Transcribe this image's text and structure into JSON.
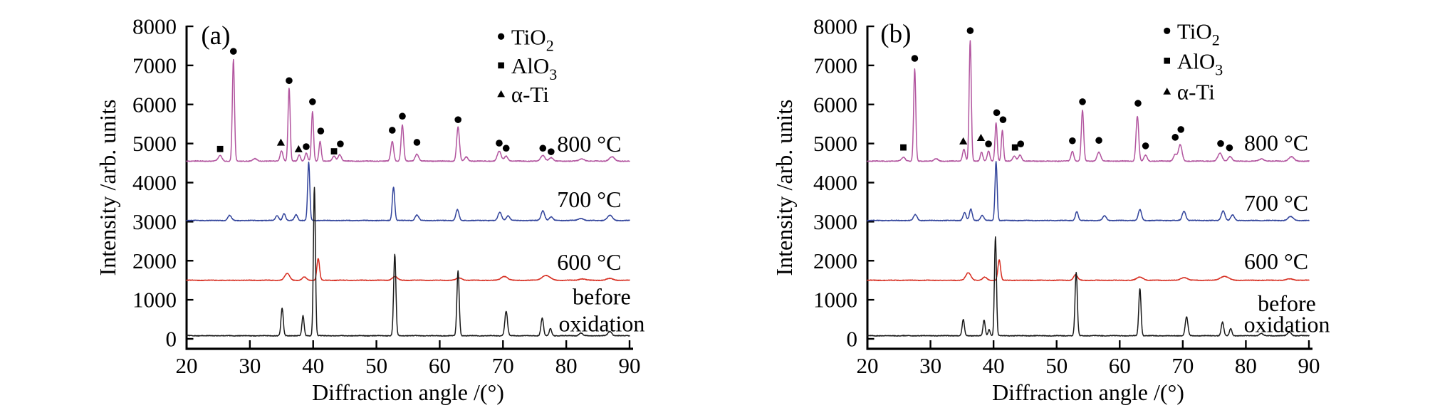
{
  "figure": {
    "background": "#ffffff",
    "description": "XRD patterns at different oxidation temperatures, two panels"
  },
  "chart_data": [
    {
      "type": "line",
      "panel_label": {
        "text": "(a)",
        "angle": 24.6,
        "value": 7780
      },
      "xlabel": "Diffraction angle /(°)",
      "ylabel": "Intensity /arb. units",
      "xlim": [
        20,
        90
      ],
      "ylim": [
        0,
        8000
      ],
      "x_ticks": [
        20,
        30,
        40,
        50,
        60,
        70,
        80,
        90
      ],
      "y_ticks": [
        0,
        1000,
        2000,
        3000,
        4000,
        5000,
        6000,
        7000,
        8000
      ],
      "legend_x": {
        "marker_angle": 69.7,
        "text_angle": 71.3
      },
      "legend": [
        {
          "symbol": "circle",
          "label": "TiO",
          "sub": "2",
          "value": 7740
        },
        {
          "symbol": "square",
          "label": "AlO",
          "sub": "3",
          "value": 7000
        },
        {
          "symbol": "triangle",
          "label": "α-Ti",
          "sub": "",
          "value": 6270
        }
      ],
      "series": [
        {
          "name": "800 °C",
          "color": "#b2559f",
          "baseline": 4550,
          "noise": 9,
          "peaks": [
            [
              25.3,
              140,
              0.3
            ],
            [
              27.4,
              2600,
              0.17
            ],
            [
              30.8,
              60,
              0.3
            ],
            [
              35.0,
              270,
              0.22
            ],
            [
              36.2,
              1870,
              0.17
            ],
            [
              37.8,
              160,
              0.2
            ],
            [
              38.9,
              210,
              0.2
            ],
            [
              39.9,
              1260,
              0.17
            ],
            [
              41.1,
              510,
              0.18
            ],
            [
              43.3,
              130,
              0.25
            ],
            [
              44.2,
              170,
              0.25
            ],
            [
              52.5,
              510,
              0.22
            ],
            [
              54.1,
              930,
              0.2
            ],
            [
              56.4,
              180,
              0.28
            ],
            [
              62.9,
              875,
              0.22
            ],
            [
              64.2,
              110,
              0.25
            ],
            [
              69.4,
              250,
              0.3
            ],
            [
              70.5,
              130,
              0.28
            ],
            [
              76.3,
              150,
              0.33
            ],
            [
              77.6,
              90,
              0.3
            ],
            [
              82.5,
              55,
              0.4
            ],
            [
              87.2,
              110,
              0.4
            ]
          ]
        },
        {
          "name": "700 °C",
          "color": "#31439b",
          "baseline": 3030,
          "noise": 8,
          "peaks": [
            [
              26.8,
              130,
              0.28
            ],
            [
              34.3,
              130,
              0.25
            ],
            [
              35.4,
              180,
              0.22
            ],
            [
              37.3,
              150,
              0.25
            ],
            [
              39.3,
              1490,
              0.17
            ],
            [
              52.7,
              860,
              0.19
            ],
            [
              56.4,
              140,
              0.28
            ],
            [
              62.8,
              280,
              0.24
            ],
            [
              69.5,
              210,
              0.28
            ],
            [
              70.8,
              120,
              0.28
            ],
            [
              76.3,
              250,
              0.28
            ],
            [
              77.6,
              90,
              0.28
            ],
            [
              82.3,
              55,
              0.4
            ],
            [
              86.9,
              130,
              0.4
            ]
          ]
        },
        {
          "name": "600 °C",
          "color": "#d62b1e",
          "baseline": 1500,
          "noise": 7,
          "peaks": [
            [
              35.9,
              175,
              0.38
            ],
            [
              38.6,
              85,
              0.32
            ],
            [
              40.8,
              560,
              0.21
            ],
            [
              52.9,
              95,
              0.4
            ],
            [
              63.1,
              60,
              0.45
            ],
            [
              70.2,
              100,
              0.5
            ],
            [
              76.8,
              120,
              0.65
            ],
            [
              82.5,
              35,
              0.5
            ],
            [
              86.9,
              45,
              0.5
            ]
          ]
        },
        {
          "name": "before oxidation",
          "color": "#1a1a1a",
          "baseline": 80,
          "noise": 8,
          "peaks": [
            [
              35.1,
              705,
              0.18
            ],
            [
              38.4,
              510,
              0.17
            ],
            [
              40.2,
              3800,
              0.16
            ],
            [
              52.9,
              2085,
              0.18
            ],
            [
              62.9,
              1670,
              0.18
            ],
            [
              70.5,
              630,
              0.21
            ],
            [
              76.2,
              450,
              0.2
            ],
            [
              77.5,
              180,
              0.19
            ],
            [
              82.3,
              70,
              0.28
            ],
            [
              86.9,
              110,
              0.3
            ]
          ]
        }
      ],
      "peak_markers": [
        {
          "symbol": "square",
          "angle": 25.3,
          "value": 4860
        },
        {
          "symbol": "circle",
          "angle": 27.4,
          "value": 7360
        },
        {
          "symbol": "triangle",
          "angle": 34.9,
          "value": 5030
        },
        {
          "symbol": "circle",
          "angle": 36.2,
          "value": 6610
        },
        {
          "symbol": "triangle",
          "angle": 37.7,
          "value": 4860
        },
        {
          "symbol": "circle",
          "angle": 38.9,
          "value": 4920
        },
        {
          "symbol": "circle",
          "angle": 39.9,
          "value": 6070
        },
        {
          "symbol": "circle",
          "angle": 41.2,
          "value": 5320
        },
        {
          "symbol": "square",
          "angle": 43.3,
          "value": 4800
        },
        {
          "symbol": "circle",
          "angle": 44.3,
          "value": 4990
        },
        {
          "symbol": "circle",
          "angle": 52.5,
          "value": 5340
        },
        {
          "symbol": "circle",
          "angle": 54.1,
          "value": 5700
        },
        {
          "symbol": "circle",
          "angle": 56.4,
          "value": 5030
        },
        {
          "symbol": "circle",
          "angle": 62.9,
          "value": 5610
        },
        {
          "symbol": "circle",
          "angle": 69.4,
          "value": 5010
        },
        {
          "symbol": "circle",
          "angle": 70.5,
          "value": 4880
        },
        {
          "symbol": "circle",
          "angle": 76.3,
          "value": 4880
        },
        {
          "symbol": "circle",
          "angle": 77.6,
          "value": 4790
        }
      ],
      "series_labels": [
        {
          "text": "800 °C",
          "angle": 88.7,
          "value": 4990,
          "anchor": "end"
        },
        {
          "text": "700 °C",
          "angle": 88.7,
          "value": 3570,
          "anchor": "end"
        },
        {
          "text": "600 °C",
          "angle": 88.7,
          "value": 1966,
          "anchor": "end"
        },
        {
          "text": "before",
          "angle": 85.6,
          "value": 1080,
          "anchor": "middle"
        },
        {
          "text": "oxidation",
          "angle": 85.6,
          "value": 390,
          "anchor": "middle"
        }
      ]
    },
    {
      "type": "line",
      "panel_label": {
        "text": "(b)",
        "angle": 24.5,
        "value": 7830
      },
      "xlabel": "Diffraction angle /(°)",
      "ylabel": "Intensity /arb. units",
      "xlim": [
        20,
        90
      ],
      "ylim": [
        0,
        8000
      ],
      "x_ticks": [
        20,
        30,
        40,
        50,
        60,
        70,
        80,
        90
      ],
      "y_ticks": [
        0,
        1000,
        2000,
        3000,
        4000,
        5000,
        6000,
        7000,
        8000
      ],
      "legend_x": {
        "marker_angle": 67.5,
        "text_angle": 69.1
      },
      "legend": [
        {
          "symbol": "circle",
          "label": "TiO",
          "sub": "2",
          "value": 7885
        },
        {
          "symbol": "square",
          "label": "AlO",
          "sub": "3",
          "value": 7120
        },
        {
          "symbol": "triangle",
          "label": "α-Ti",
          "sub": "",
          "value": 6335
        }
      ],
      "series": [
        {
          "name": "800 °C",
          "color": "#b2559f",
          "baseline": 4550,
          "noise": 9,
          "peaks": [
            [
              25.7,
              100,
              0.3
            ],
            [
              27.5,
              2350,
              0.17
            ],
            [
              30.9,
              60,
              0.3
            ],
            [
              35.3,
              300,
              0.22
            ],
            [
              36.3,
              3080,
              0.17
            ],
            [
              38.1,
              230,
              0.2
            ],
            [
              39.2,
              260,
              0.2
            ],
            [
              40.4,
              985,
              0.17
            ],
            [
              41.4,
              785,
              0.17
            ],
            [
              43.3,
              130,
              0.25
            ],
            [
              44.2,
              160,
              0.25
            ],
            [
              52.5,
              250,
              0.22
            ],
            [
              54.1,
              1295,
              0.19
            ],
            [
              56.7,
              230,
              0.28
            ],
            [
              62.8,
              1150,
              0.21
            ],
            [
              64.1,
              150,
              0.25
            ],
            [
              68.8,
              170,
              0.28
            ],
            [
              69.6,
              420,
              0.28
            ],
            [
              75.9,
              200,
              0.33
            ],
            [
              77.5,
              120,
              0.3
            ],
            [
              82.5,
              55,
              0.4
            ],
            [
              87.2,
              110,
              0.4
            ]
          ]
        },
        {
          "name": "700 °C",
          "color": "#31439b",
          "baseline": 3030,
          "noise": 8,
          "peaks": [
            [
              27.6,
              150,
              0.28
            ],
            [
              35.4,
              200,
              0.24
            ],
            [
              36.4,
              290,
              0.22
            ],
            [
              38.2,
              130,
              0.25
            ],
            [
              40.4,
              1505,
              0.17
            ],
            [
              53.2,
              230,
              0.22
            ],
            [
              57.6,
              120,
              0.28
            ],
            [
              63.2,
              280,
              0.25
            ],
            [
              70.2,
              240,
              0.28
            ],
            [
              76.4,
              250,
              0.28
            ],
            [
              77.9,
              140,
              0.28
            ],
            [
              87.1,
              100,
              0.4
            ]
          ]
        },
        {
          "name": "600 °C",
          "color": "#d62b1e",
          "baseline": 1500,
          "noise": 7,
          "peaks": [
            [
              36.0,
              190,
              0.4
            ],
            [
              38.6,
              80,
              0.32
            ],
            [
              40.9,
              520,
              0.21
            ],
            [
              53.0,
              140,
              0.32
            ],
            [
              63.2,
              80,
              0.5
            ],
            [
              70.2,
              70,
              0.5
            ],
            [
              76.6,
              100,
              0.65
            ],
            [
              87.0,
              35,
              0.5
            ]
          ]
        },
        {
          "name": "before oxidation",
          "color": "#1a1a1a",
          "baseline": 80,
          "noise": 8,
          "peaks": [
            [
              35.2,
              410,
              0.18
            ],
            [
              38.5,
              400,
              0.17
            ],
            [
              39.3,
              160,
              0.16
            ],
            [
              40.3,
              2540,
              0.16
            ],
            [
              53.1,
              1615,
              0.18
            ],
            [
              63.2,
              1210,
              0.18
            ],
            [
              70.6,
              485,
              0.21
            ],
            [
              76.3,
              350,
              0.2
            ],
            [
              77.6,
              180,
              0.19
            ],
            [
              82.4,
              60,
              0.28
            ],
            [
              86.9,
              90,
              0.3
            ]
          ]
        }
      ],
      "peak_markers": [
        {
          "symbol": "square",
          "angle": 25.7,
          "value": 4900
        },
        {
          "symbol": "circle",
          "angle": 27.5,
          "value": 7180
        },
        {
          "symbol": "triangle",
          "angle": 35.2,
          "value": 5060
        },
        {
          "symbol": "circle",
          "angle": 36.3,
          "value": 7890
        },
        {
          "symbol": "triangle",
          "angle": 38.0,
          "value": 5150
        },
        {
          "symbol": "circle",
          "angle": 39.2,
          "value": 4990
        },
        {
          "symbol": "circle",
          "angle": 40.5,
          "value": 5790
        },
        {
          "symbol": "circle",
          "angle": 41.5,
          "value": 5610
        },
        {
          "symbol": "square",
          "angle": 43.4,
          "value": 4900
        },
        {
          "symbol": "circle",
          "angle": 44.3,
          "value": 4990
        },
        {
          "symbol": "circle",
          "angle": 52.5,
          "value": 5070
        },
        {
          "symbol": "circle",
          "angle": 54.1,
          "value": 6070
        },
        {
          "symbol": "circle",
          "angle": 56.7,
          "value": 5080
        },
        {
          "symbol": "circle",
          "angle": 62.9,
          "value": 6030
        },
        {
          "symbol": "circle",
          "angle": 64.1,
          "value": 4940
        },
        {
          "symbol": "circle",
          "angle": 68.8,
          "value": 5160
        },
        {
          "symbol": "circle",
          "angle": 69.7,
          "value": 5360
        },
        {
          "symbol": "circle",
          "angle": 76.0,
          "value": 5000
        },
        {
          "symbol": "circle",
          "angle": 77.4,
          "value": 4890
        }
      ],
      "series_labels": [
        {
          "text": "800 °C",
          "angle": 89.9,
          "value": 5025,
          "anchor": "end"
        },
        {
          "text": "700 °C",
          "angle": 89.9,
          "value": 3480,
          "anchor": "end"
        },
        {
          "text": "600 °C",
          "angle": 89.9,
          "value": 1990,
          "anchor": "end"
        },
        {
          "text": "before",
          "angle": 86.5,
          "value": 910,
          "anchor": "middle"
        },
        {
          "text": "oxidation",
          "angle": 86.5,
          "value": 370,
          "anchor": "middle"
        }
      ]
    }
  ]
}
